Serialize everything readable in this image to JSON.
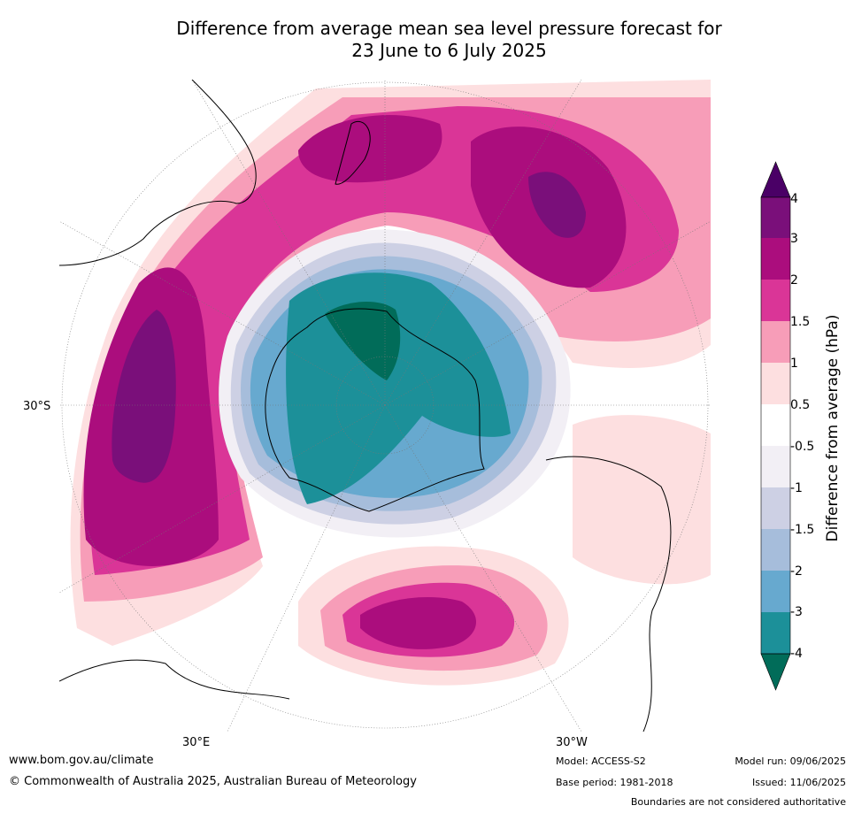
{
  "title_line1": "Difference from average mean sea level pressure forecast for",
  "title_line2": "23 June to 6 July 2025",
  "axis_labels": {
    "lat_left": "30°S",
    "lon_bottom_left": "30°E",
    "lon_bottom_right": "30°W"
  },
  "colorbar": {
    "title": "Difference from average (hPa)",
    "tick_labels": [
      "4",
      "3",
      "2",
      "1.5",
      "1",
      "0.5",
      "-0.5",
      "-1",
      "-1.5",
      "-2",
      "-3",
      "-4"
    ],
    "colors_top_to_bottom": [
      "#4a0066",
      "#7a0f7a",
      "#ab0d7d",
      "#da3597",
      "#f79db8",
      "#fddfe0",
      "#ffffff",
      "#f2eff5",
      "#cdd0e4",
      "#a6bddb",
      "#67a9cf",
      "#1c9099",
      "#016c59"
    ]
  },
  "footer": {
    "website": "www.bom.gov.au/climate",
    "copyright": "© Commonwealth of Australia 2025, Australian Bureau of Meteorology",
    "model": "Model: ACCESS-S2",
    "base_period": "Base period: 1981-2018",
    "model_run": "Model run: 09/06/2025",
    "issued": "Issued: 11/06/2025",
    "disclaimer": "Boundaries are not considered authoritative"
  }
}
